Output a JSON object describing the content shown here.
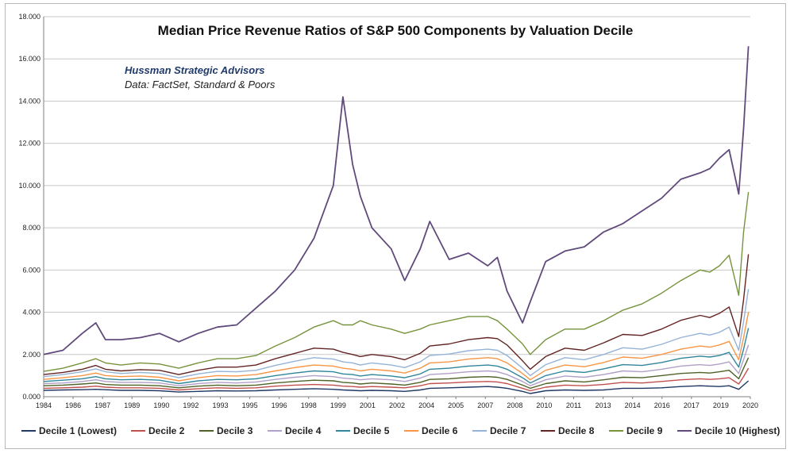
{
  "chart_data": {
    "type": "line",
    "title": "Median Price Revenue Ratios of S&P 500 Components by Valuation Decile",
    "credits": [
      "Hussman Strategic Advisors",
      "Data: FactSet, Standard & Poors"
    ],
    "xlabel": "",
    "ylabel": "",
    "ylim": [
      0,
      18
    ],
    "y_ticks": [
      "0.000",
      "2.000",
      "4.000",
      "6.000",
      "8.000",
      "10.000",
      "12.000",
      "14.000",
      "16.000",
      "18.000"
    ],
    "x_ticks": [
      "1984",
      "1986",
      "1987",
      "1989",
      "1990",
      "1992",
      "1993",
      "1995",
      "1996",
      "1998",
      "1999",
      "2001",
      "2002",
      "2004",
      "2005",
      "2007",
      "2008",
      "2010",
      "2011",
      "2013",
      "2014",
      "2016",
      "2017",
      "2019",
      "2020"
    ],
    "xlim": [
      1984.0,
      2020.6
    ],
    "grid": true,
    "legend_position": "bottom",
    "x": [
      1984.0,
      1985.0,
      1986.0,
      1986.7,
      1987.2,
      1988.0,
      1989.0,
      1990.0,
      1991.0,
      1992.0,
      1993.0,
      1994.0,
      1995.0,
      1996.0,
      1997.0,
      1998.0,
      1999.0,
      1999.5,
      2000.0,
      2000.4,
      2001.0,
      2002.0,
      2002.7,
      2003.5,
      2004.0,
      2005.0,
      2006.0,
      2007.0,
      2007.5,
      2008.0,
      2008.8,
      2009.2,
      2010.0,
      2011.0,
      2012.0,
      2013.0,
      2014.0,
      2015.0,
      2016.0,
      2017.0,
      2018.0,
      2018.5,
      2019.0,
      2019.5,
      2020.0,
      2020.25,
      2020.5
    ],
    "series": [
      {
        "name": "Decile 1 (Lowest)",
        "color": "#1f3864",
        "values": [
          0.3,
          0.32,
          0.33,
          0.35,
          0.33,
          0.3,
          0.3,
          0.28,
          0.22,
          0.25,
          0.28,
          0.27,
          0.28,
          0.32,
          0.35,
          0.38,
          0.35,
          0.32,
          0.3,
          0.28,
          0.3,
          0.28,
          0.25,
          0.32,
          0.4,
          0.42,
          0.45,
          0.48,
          0.45,
          0.4,
          0.25,
          0.15,
          0.28,
          0.32,
          0.3,
          0.32,
          0.4,
          0.4,
          0.42,
          0.48,
          0.52,
          0.5,
          0.48,
          0.52,
          0.35,
          0.55,
          0.75
        ]
      },
      {
        "name": "Decile 2",
        "color": "#c0504d",
        "values": [
          0.4,
          0.42,
          0.45,
          0.5,
          0.45,
          0.42,
          0.42,
          0.4,
          0.32,
          0.38,
          0.42,
          0.4,
          0.42,
          0.5,
          0.55,
          0.58,
          0.55,
          0.5,
          0.48,
          0.45,
          0.48,
          0.45,
          0.42,
          0.52,
          0.62,
          0.65,
          0.7,
          0.72,
          0.7,
          0.62,
          0.4,
          0.28,
          0.45,
          0.55,
          0.52,
          0.58,
          0.68,
          0.65,
          0.72,
          0.8,
          0.85,
          0.82,
          0.85,
          0.9,
          0.6,
          0.95,
          1.35
        ]
      },
      {
        "name": "Decile 3",
        "color": "#4f6228",
        "values": [
          0.52,
          0.55,
          0.6,
          0.65,
          0.58,
          0.55,
          0.55,
          0.52,
          0.42,
          0.5,
          0.55,
          0.52,
          0.55,
          0.65,
          0.72,
          0.78,
          0.75,
          0.68,
          0.65,
          0.6,
          0.65,
          0.6,
          0.55,
          0.68,
          0.82,
          0.85,
          0.92,
          0.95,
          0.92,
          0.82,
          0.55,
          0.4,
          0.62,
          0.75,
          0.7,
          0.8,
          0.92,
          0.9,
          1.0,
          1.1,
          1.15,
          1.12,
          1.18,
          1.25,
          0.85,
          1.35,
          1.85
        ]
      },
      {
        "name": "Decile 4",
        "color": "#b1a0c7",
        "values": [
          0.62,
          0.65,
          0.72,
          0.8,
          0.72,
          0.68,
          0.68,
          0.65,
          0.52,
          0.62,
          0.68,
          0.65,
          0.7,
          0.82,
          0.92,
          1.0,
          0.95,
          0.88,
          0.85,
          0.8,
          0.85,
          0.8,
          0.72,
          0.88,
          1.05,
          1.1,
          1.18,
          1.22,
          1.18,
          1.05,
          0.72,
          0.52,
          0.8,
          0.98,
          0.92,
          1.05,
          1.22,
          1.18,
          1.3,
          1.45,
          1.52,
          1.48,
          1.55,
          1.65,
          1.1,
          1.75,
          2.45
        ]
      },
      {
        "name": "Decile 5",
        "color": "#31869b",
        "values": [
          0.72,
          0.78,
          0.85,
          0.95,
          0.85,
          0.8,
          0.82,
          0.78,
          0.62,
          0.75,
          0.82,
          0.8,
          0.85,
          1.0,
          1.12,
          1.22,
          1.18,
          1.08,
          1.05,
          0.98,
          1.05,
          0.98,
          0.9,
          1.08,
          1.3,
          1.35,
          1.45,
          1.5,
          1.45,
          1.3,
          0.9,
          0.65,
          1.0,
          1.22,
          1.15,
          1.32,
          1.52,
          1.48,
          1.62,
          1.82,
          1.92,
          1.88,
          1.95,
          2.1,
          1.4,
          2.25,
          3.25
        ]
      },
      {
        "name": "Decile 6",
        "color": "#f79646",
        "values": [
          0.82,
          0.9,
          1.0,
          1.12,
          1.0,
          0.95,
          0.98,
          0.92,
          0.75,
          0.9,
          1.0,
          0.98,
          1.05,
          1.22,
          1.38,
          1.5,
          1.45,
          1.35,
          1.3,
          1.22,
          1.3,
          1.22,
          1.12,
          1.35,
          1.6,
          1.65,
          1.78,
          1.85,
          1.8,
          1.6,
          1.1,
          0.8,
          1.25,
          1.5,
          1.42,
          1.62,
          1.88,
          1.82,
          2.0,
          2.25,
          2.4,
          2.35,
          2.45,
          2.62,
          1.75,
          2.8,
          4.0
        ]
      },
      {
        "name": "Decile 7",
        "color": "#95b3d7",
        "values": [
          0.95,
          1.05,
          1.18,
          1.32,
          1.18,
          1.1,
          1.15,
          1.1,
          0.9,
          1.08,
          1.2,
          1.18,
          1.25,
          1.48,
          1.68,
          1.85,
          1.78,
          1.65,
          1.6,
          1.5,
          1.6,
          1.5,
          1.38,
          1.65,
          1.95,
          2.02,
          2.18,
          2.25,
          2.2,
          1.95,
          1.35,
          1.0,
          1.52,
          1.85,
          1.75,
          2.0,
          2.32,
          2.25,
          2.48,
          2.8,
          3.0,
          2.92,
          3.05,
          3.3,
          2.2,
          3.55,
          5.1
        ]
      },
      {
        "name": "Decile 8",
        "color": "#632523",
        "values": [
          1.05,
          1.15,
          1.3,
          1.48,
          1.3,
          1.22,
          1.28,
          1.25,
          1.05,
          1.25,
          1.4,
          1.4,
          1.5,
          1.8,
          2.05,
          2.3,
          2.25,
          2.1,
          2.0,
          1.9,
          2.0,
          1.9,
          1.75,
          2.05,
          2.4,
          2.5,
          2.7,
          2.8,
          2.75,
          2.45,
          1.7,
          1.3,
          1.9,
          2.3,
          2.2,
          2.55,
          2.95,
          2.9,
          3.2,
          3.62,
          3.85,
          3.75,
          3.95,
          4.25,
          2.85,
          4.6,
          6.75
        ]
      },
      {
        "name": "Decile 9",
        "color": "#77933c",
        "values": [
          1.2,
          1.35,
          1.6,
          1.8,
          1.6,
          1.5,
          1.6,
          1.55,
          1.35,
          1.6,
          1.8,
          1.8,
          1.95,
          2.4,
          2.8,
          3.3,
          3.6,
          3.4,
          3.4,
          3.6,
          3.4,
          3.2,
          3.0,
          3.2,
          3.4,
          3.6,
          3.8,
          3.8,
          3.6,
          3.2,
          2.5,
          2.0,
          2.7,
          3.2,
          3.2,
          3.6,
          4.1,
          4.4,
          4.9,
          5.5,
          6.0,
          5.9,
          6.2,
          6.7,
          4.8,
          7.8,
          9.7
        ]
      },
      {
        "name": "Decile 10 (Highest)",
        "color": "#604a7b",
        "values": [
          2.0,
          2.2,
          3.0,
          3.5,
          2.7,
          2.7,
          2.8,
          3.0,
          2.6,
          3.0,
          3.3,
          3.4,
          4.2,
          5.0,
          6.0,
          7.5,
          10.0,
          14.2,
          11.0,
          9.5,
          8.0,
          7.0,
          5.5,
          7.0,
          8.3,
          6.5,
          6.8,
          6.2,
          6.6,
          5.0,
          3.5,
          4.5,
          6.4,
          6.9,
          7.1,
          7.8,
          8.2,
          8.8,
          9.4,
          10.3,
          10.6,
          10.8,
          11.3,
          11.7,
          9.6,
          12.7,
          16.6
        ]
      }
    ]
  }
}
